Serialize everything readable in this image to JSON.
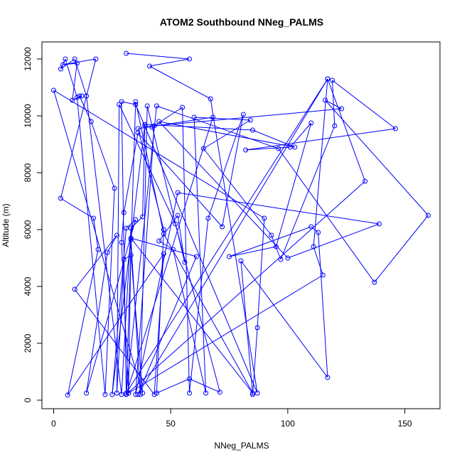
{
  "chart_data": {
    "type": "line",
    "title": "ATOM2 Southbound NNeg_PALMS",
    "xlabel": "NNeg_PALMS",
    "ylabel": "Altitude (m)",
    "xlim": [
      -5,
      165
    ],
    "ylim": [
      -300,
      12600
    ],
    "xticks": [
      0,
      50,
      100,
      150
    ],
    "yticks": [
      0,
      2000,
      4000,
      6000,
      8000,
      10000,
      12000
    ],
    "grid": false,
    "legend": "none",
    "series": [
      {
        "color": "#0000ff",
        "marker": "open-circle",
        "x": [
          31,
          58,
          41,
          67,
          87,
          35,
          29,
          31,
          133,
          117,
          31,
          44,
          96,
          137,
          160,
          116,
          123,
          43,
          35,
          53,
          139,
          100,
          45,
          103,
          85,
          39,
          25,
          31,
          35,
          14,
          23,
          27,
          9,
          43,
          47,
          6,
          19,
          17,
          3,
          18,
          4,
          10,
          8,
          12,
          11,
          16,
          26,
          22,
          10,
          5,
          3,
          9,
          14,
          29,
          33,
          38,
          39,
          42,
          55,
          58,
          66,
          81,
          72,
          36,
          30,
          29,
          32,
          33,
          37,
          40,
          56,
          53,
          45,
          51,
          65,
          60,
          84,
          64,
          93,
          97,
          120,
          119,
          146,
          82,
          101,
          110,
          95,
          75,
          110,
          113,
          117,
          80,
          85,
          87,
          90,
          0,
          38,
          33,
          30,
          27,
          28,
          52,
          71,
          58,
          44,
          47,
          36,
          68,
          31,
          35,
          47,
          85,
          33,
          61,
          36,
          117,
          111,
          115,
          32
        ],
        "y": [
          12200,
          12000,
          11750,
          10600,
          250,
          10400,
          10500,
          200,
          7700,
          11300,
          250,
          10350,
          8850,
          4150,
          6500,
          10550,
          10250,
          9650,
          200,
          7300,
          6200,
          5000,
          9800,
          8900,
          9500,
          9700,
          200,
          6050,
          6350,
          250,
          5200,
          5800,
          3900,
          200,
          5150,
          180,
          5300,
          6400,
          7100,
          12000,
          11800,
          11850,
          10550,
          10700,
          10700,
          9800,
          7450,
          200,
          10650,
          12000,
          11650,
          12000,
          10700,
          200,
          6050,
          6450,
          9650,
          9600,
          10300,
          250,
          6400,
          10050,
          6100,
          9400,
          6600,
          5550,
          250,
          5650,
          200,
          10350,
          4850,
          6500,
          5600,
          5300,
          250,
          9950,
          9850,
          8850,
          5800,
          4950,
          9650,
          11250,
          9550,
          8800,
          8900,
          9750,
          5400,
          5050,
          6100,
          5900,
          800,
          4900,
          200,
          2550,
          6400,
          10900,
          250,
          5100,
          4950,
          250,
          10400,
          6200,
          280,
          750,
          250,
          6000,
          9550,
          9950,
          200,
          10500,
          5850,
          250,
          5700,
          5050,
          200,
          11300,
          5400,
          4400,
          250
        ]
      }
    ]
  }
}
